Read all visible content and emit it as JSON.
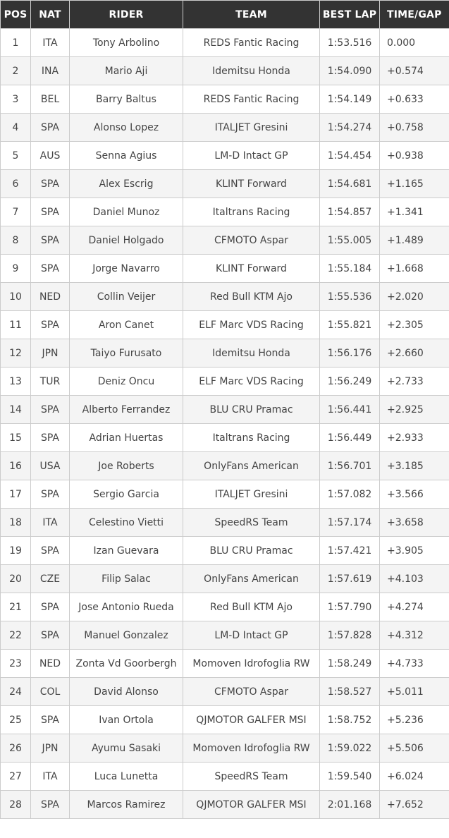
{
  "colors": {
    "header_bg": "#333333",
    "header_text": "#ffffff",
    "row_odd_bg": "#ffffff",
    "row_even_bg": "#f4f4f4",
    "border": "#cccccc",
    "cell_text": "#444444"
  },
  "table": {
    "columns": [
      {
        "id": "pos",
        "label": "POS"
      },
      {
        "id": "nat",
        "label": "NAT"
      },
      {
        "id": "rider",
        "label": "RIDER"
      },
      {
        "id": "team",
        "label": "TEAM"
      },
      {
        "id": "best_lap",
        "label": "BEST LAP"
      },
      {
        "id": "time_gap",
        "label": "TIME/GAP"
      }
    ],
    "rows": [
      {
        "pos": "1",
        "nat": "ITA",
        "rider": "Tony Arbolino",
        "team": "REDS Fantic Racing",
        "best_lap": "1:53.516",
        "time_gap": "0.000"
      },
      {
        "pos": "2",
        "nat": "INA",
        "rider": "Mario Aji",
        "team": "Idemitsu Honda",
        "best_lap": "1:54.090",
        "time_gap": "+0.574"
      },
      {
        "pos": "3",
        "nat": "BEL",
        "rider": "Barry Baltus",
        "team": "REDS Fantic Racing",
        "best_lap": "1:54.149",
        "time_gap": "+0.633"
      },
      {
        "pos": "4",
        "nat": "SPA",
        "rider": "Alonso Lopez",
        "team": "ITALJET Gresini",
        "best_lap": "1:54.274",
        "time_gap": "+0.758"
      },
      {
        "pos": "5",
        "nat": "AUS",
        "rider": "Senna Agius",
        "team": "LM-D Intact GP",
        "best_lap": "1:54.454",
        "time_gap": "+0.938"
      },
      {
        "pos": "6",
        "nat": "SPA",
        "rider": "Alex Escrig",
        "team": "KLINT Forward",
        "best_lap": "1:54.681",
        "time_gap": "+1.165"
      },
      {
        "pos": "7",
        "nat": "SPA",
        "rider": "Daniel Munoz",
        "team": "Italtrans Racing",
        "best_lap": "1:54.857",
        "time_gap": "+1.341"
      },
      {
        "pos": "8",
        "nat": "SPA",
        "rider": "Daniel Holgado",
        "team": "CFMOTO Aspar",
        "best_lap": "1:55.005",
        "time_gap": "+1.489"
      },
      {
        "pos": "9",
        "nat": "SPA",
        "rider": "Jorge Navarro",
        "team": "KLINT Forward",
        "best_lap": "1:55.184",
        "time_gap": "+1.668"
      },
      {
        "pos": "10",
        "nat": "NED",
        "rider": "Collin Veijer",
        "team": "Red Bull KTM Ajo",
        "best_lap": "1:55.536",
        "time_gap": "+2.020"
      },
      {
        "pos": "11",
        "nat": "SPA",
        "rider": "Aron Canet",
        "team": "ELF Marc VDS Racing",
        "best_lap": "1:55.821",
        "time_gap": "+2.305"
      },
      {
        "pos": "12",
        "nat": "JPN",
        "rider": "Taiyo Furusato",
        "team": "Idemitsu Honda",
        "best_lap": "1:56.176",
        "time_gap": "+2.660"
      },
      {
        "pos": "13",
        "nat": "TUR",
        "rider": "Deniz Oncu",
        "team": "ELF Marc VDS Racing",
        "best_lap": "1:56.249",
        "time_gap": "+2.733"
      },
      {
        "pos": "14",
        "nat": "SPA",
        "rider": "Alberto Ferrandez",
        "team": "BLU CRU Pramac",
        "best_lap": "1:56.441",
        "time_gap": "+2.925"
      },
      {
        "pos": "15",
        "nat": "SPA",
        "rider": "Adrian Huertas",
        "team": "Italtrans Racing",
        "best_lap": "1:56.449",
        "time_gap": "+2.933"
      },
      {
        "pos": "16",
        "nat": "USA",
        "rider": "Joe Roberts",
        "team": "OnlyFans American",
        "best_lap": "1:56.701",
        "time_gap": "+3.185"
      },
      {
        "pos": "17",
        "nat": "SPA",
        "rider": "Sergio Garcia",
        "team": "ITALJET Gresini",
        "best_lap": "1:57.082",
        "time_gap": "+3.566"
      },
      {
        "pos": "18",
        "nat": "ITA",
        "rider": "Celestino Vietti",
        "team": "SpeedRS Team",
        "best_lap": "1:57.174",
        "time_gap": "+3.658"
      },
      {
        "pos": "19",
        "nat": "SPA",
        "rider": "Izan Guevara",
        "team": "BLU CRU Pramac",
        "best_lap": "1:57.421",
        "time_gap": "+3.905"
      },
      {
        "pos": "20",
        "nat": "CZE",
        "rider": "Filip Salac",
        "team": "OnlyFans American",
        "best_lap": "1:57.619",
        "time_gap": "+4.103"
      },
      {
        "pos": "21",
        "nat": "SPA",
        "rider": "Jose Antonio Rueda",
        "team": "Red Bull KTM Ajo",
        "best_lap": "1:57.790",
        "time_gap": "+4.274"
      },
      {
        "pos": "22",
        "nat": "SPA",
        "rider": "Manuel Gonzalez",
        "team": "LM-D Intact GP",
        "best_lap": "1:57.828",
        "time_gap": "+4.312"
      },
      {
        "pos": "23",
        "nat": "NED",
        "rider": "Zonta Vd Goorbergh",
        "team": "Momoven Idrofoglia RW",
        "best_lap": "1:58.249",
        "time_gap": "+4.733"
      },
      {
        "pos": "24",
        "nat": "COL",
        "rider": "David Alonso",
        "team": "CFMOTO Aspar",
        "best_lap": "1:58.527",
        "time_gap": "+5.011"
      },
      {
        "pos": "25",
        "nat": "SPA",
        "rider": "Ivan Ortola",
        "team": "QJMOTOR GALFER MSI",
        "best_lap": "1:58.752",
        "time_gap": "+5.236"
      },
      {
        "pos": "26",
        "nat": "JPN",
        "rider": "Ayumu Sasaki",
        "team": "Momoven Idrofoglia RW",
        "best_lap": "1:59.022",
        "time_gap": "+5.506"
      },
      {
        "pos": "27",
        "nat": "ITA",
        "rider": "Luca Lunetta",
        "team": "SpeedRS Team",
        "best_lap": "1:59.540",
        "time_gap": "+6.024"
      },
      {
        "pos": "28",
        "nat": "SPA",
        "rider": "Marcos Ramirez",
        "team": "QJMOTOR GALFER MSI",
        "best_lap": "2:01.168",
        "time_gap": "+7.652"
      }
    ]
  }
}
